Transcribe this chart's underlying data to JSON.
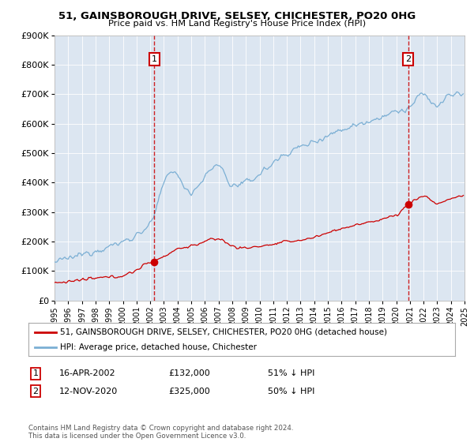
{
  "title": "51, GAINSBOROUGH DRIVE, SELSEY, CHICHESTER, PO20 0HG",
  "subtitle": "Price paid vs. HM Land Registry's House Price Index (HPI)",
  "x_start_year": 1995,
  "x_end_year": 2025,
  "ylim": [
    0,
    900000
  ],
  "yticks": [
    0,
    100000,
    200000,
    300000,
    400000,
    500000,
    600000,
    700000,
    800000,
    900000
  ],
  "ytick_labels": [
    "£0",
    "£100K",
    "£200K",
    "£300K",
    "£400K",
    "£500K",
    "£600K",
    "£700K",
    "£800K",
    "£900K"
  ],
  "hpi_color": "#7bafd4",
  "price_color": "#cc0000",
  "marker_color": "#cc0000",
  "vline_color": "#cc0000",
  "plot_bg_color": "#dce6f1",
  "legend_label_red": "51, GAINSBOROUGH DRIVE, SELSEY, CHICHESTER, PO20 0HG (detached house)",
  "legend_label_blue": "HPI: Average price, detached house, Chichester",
  "annotation1_date": "16-APR-2002",
  "annotation1_price": "£132,000",
  "annotation1_hpi": "51% ↓ HPI",
  "annotation1_year": 2002.29,
  "annotation1_value": 132000,
  "annotation2_date": "12-NOV-2020",
  "annotation2_price": "£325,000",
  "annotation2_hpi": "50% ↓ HPI",
  "annotation2_year": 2020.87,
  "annotation2_value": 325000,
  "footer": "Contains HM Land Registry data © Crown copyright and database right 2024.\nThis data is licensed under the Open Government Licence v3.0."
}
